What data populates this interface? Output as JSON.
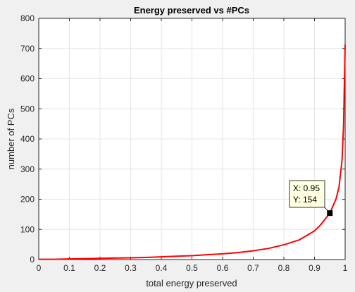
{
  "chart_data": {
    "type": "line",
    "title": "Energy preserved vs #PCs",
    "xlabel": "total energy preserved",
    "ylabel": "number of PCs",
    "xlim": [
      0,
      1
    ],
    "ylim": [
      0,
      800
    ],
    "xticks": [
      0,
      0.1,
      0.2,
      0.3,
      0.4,
      0.5,
      0.6,
      0.7,
      0.8,
      0.9,
      1
    ],
    "xtick_labels": [
      "0",
      "0.1",
      "0.2",
      "0.3",
      "0.4",
      "0.5",
      "0.6",
      "0.7",
      "0.8",
      "0.9",
      "1"
    ],
    "yticks": [
      0,
      100,
      200,
      300,
      400,
      500,
      600,
      700,
      800
    ],
    "ytick_labels": [
      "0",
      "100",
      "200",
      "300",
      "400",
      "500",
      "600",
      "700",
      "800"
    ],
    "grid": true,
    "series": [
      {
        "color": "#ff0000",
        "x": [
          0,
          0.05,
          0.1,
          0.15,
          0.2,
          0.25,
          0.3,
          0.35,
          0.4,
          0.45,
          0.5,
          0.55,
          0.6,
          0.65,
          0.7,
          0.75,
          0.8,
          0.85,
          0.9,
          0.92,
          0.95,
          0.97,
          0.98,
          0.99,
          0.995,
          1.0
        ],
        "y": [
          1,
          1,
          2,
          3,
          4,
          5,
          6,
          7,
          9,
          11,
          13,
          16,
          19,
          23,
          29,
          37,
          49,
          65,
          95,
          115,
          154,
          200,
          240,
          330,
          450,
          713
        ]
      }
    ],
    "datatip": {
      "x": 0.95,
      "y": 154,
      "lines": [
        "X: 0.95",
        "Y: 154"
      ]
    }
  }
}
